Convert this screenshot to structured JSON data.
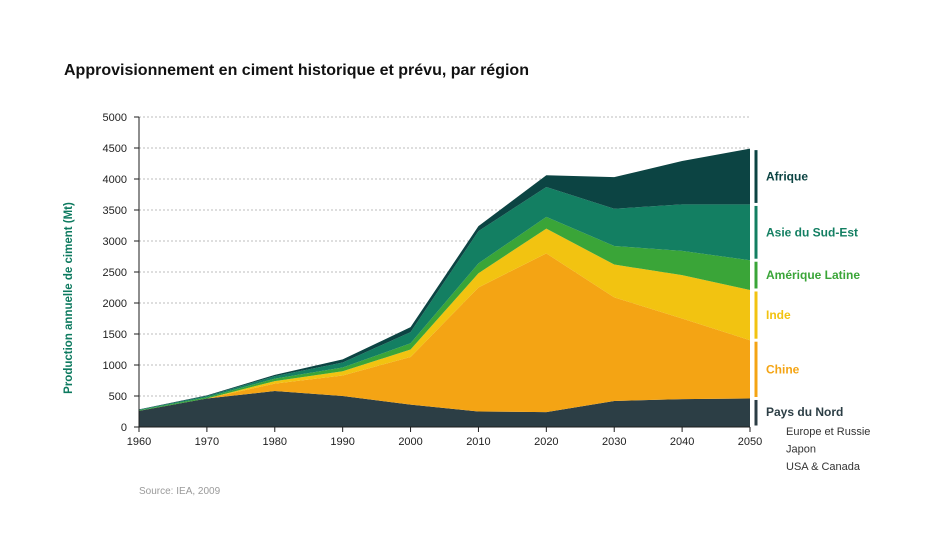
{
  "chart_data": {
    "type": "area",
    "stacked": true,
    "title": "Approvisionnement en ciment historique et prévu, par région",
    "ylabel": "Production annuelle de ciment (Mt)",
    "xlabel": "",
    "x": [
      1960,
      1970,
      1980,
      1990,
      2000,
      2010,
      2020,
      2030,
      2040,
      2050
    ],
    "xlim": [
      1960,
      2050
    ],
    "ylim": [
      0,
      5000
    ],
    "yticks": [
      0,
      500,
      1000,
      1500,
      2000,
      2500,
      3000,
      3500,
      4000,
      4500,
      5000
    ],
    "grid": "horizontal dashed",
    "legend": "right, bracketed labels",
    "series": [
      {
        "name": "Pays du Nord",
        "color": "#2c3e45",
        "values": [
          260,
          460,
          580,
          500,
          360,
          250,
          240,
          420,
          450,
          460
        ]
      },
      {
        "name": "Chine",
        "color": "#f4a414",
        "values": [
          0,
          0,
          120,
          330,
          770,
          2000,
          2560,
          1670,
          1300,
          940
        ]
      },
      {
        "name": "Inde",
        "color": "#f2c311",
        "values": [
          0,
          0,
          40,
          70,
          120,
          230,
          400,
          530,
          700,
          810
        ]
      },
      {
        "name": "Amérique Latine",
        "color": "#3aa538",
        "values": [
          10,
          20,
          40,
          60,
          100,
          160,
          190,
          300,
          390,
          480
        ]
      },
      {
        "name": "Asie du Sud-Est",
        "color": "#137f62",
        "values": [
          10,
          20,
          40,
          80,
          180,
          520,
          480,
          600,
          750,
          900
        ]
      },
      {
        "name": "Afrique",
        "color": "#0c4443",
        "values": [
          5,
          10,
          20,
          50,
          80,
          80,
          190,
          510,
          700,
          900
        ]
      }
    ],
    "subregions_label_of": "Pays du Nord",
    "subregions": [
      "Europe et Russie",
      "Japon",
      "USA & Canada"
    ],
    "source": "Source: IEA, 2009"
  },
  "colors": {
    "ylabel": "#0d7a5f",
    "grid": "#bdbdbd",
    "axis": "#1d1d1d"
  }
}
